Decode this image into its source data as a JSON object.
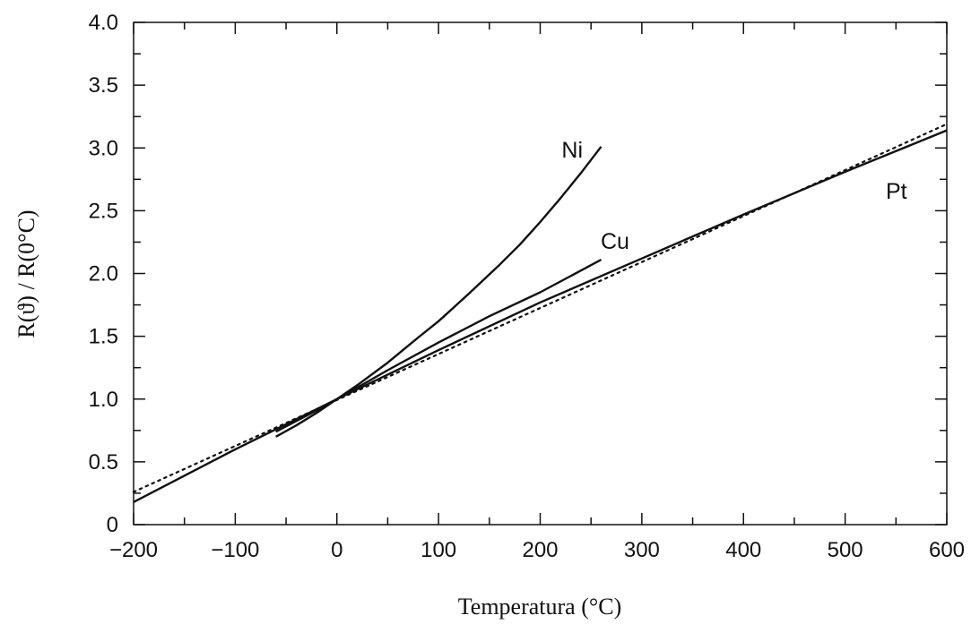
{
  "chart_data": {
    "type": "line",
    "xlabel": "Temperatura (°C)",
    "ylabel": "R(ϑ) / R(0°C)",
    "xlim": [
      -200,
      600
    ],
    "ylim": [
      0,
      4.0
    ],
    "x_ticks": [
      -200,
      -100,
      0,
      100,
      200,
      300,
      400,
      500,
      600
    ],
    "x_tick_labels": [
      "−200",
      "−100",
      "0",
      "100",
      "200",
      "300",
      "400",
      "500",
      "600"
    ],
    "y_ticks": [
      0,
      0.5,
      1.0,
      1.5,
      2.0,
      2.5,
      3.0,
      3.5,
      4.0
    ],
    "y_tick_labels": [
      "0",
      "0.5",
      "1.0",
      "1.5",
      "2.0",
      "2.5",
      "3.0",
      "3.5",
      "4.0"
    ],
    "grid": false,
    "series": [
      {
        "name": "Ni",
        "style": "solid",
        "color": "#111111",
        "x": [
          -60,
          -40,
          -20,
          0,
          20,
          50,
          80,
          100,
          130,
          160,
          180,
          200,
          220,
          240,
          260
        ],
        "y": [
          0.7,
          0.79,
          0.89,
          1.0,
          1.11,
          1.29,
          1.49,
          1.62,
          1.84,
          2.07,
          2.23,
          2.41,
          2.6,
          2.8,
          3.01
        ]
      },
      {
        "name": "Cu",
        "style": "solid",
        "color": "#111111",
        "x": [
          -60,
          -20,
          0,
          50,
          100,
          150,
          200,
          260
        ],
        "y": [
          0.74,
          0.91,
          1.0,
          1.23,
          1.45,
          1.66,
          1.85,
          2.11
        ]
      },
      {
        "name": "Pt",
        "style": "solid",
        "color": "#111111",
        "x": [
          -200,
          -100,
          0,
          100,
          200,
          300,
          400,
          500,
          600
        ],
        "y": [
          0.18,
          0.6,
          1.0,
          1.39,
          1.77,
          2.12,
          2.47,
          2.81,
          3.14
        ]
      },
      {
        "name": "",
        "style": "dotted",
        "color": "#111111",
        "x": [
          -200,
          600
        ],
        "y": [
          0.26,
          3.19
        ]
      }
    ]
  }
}
